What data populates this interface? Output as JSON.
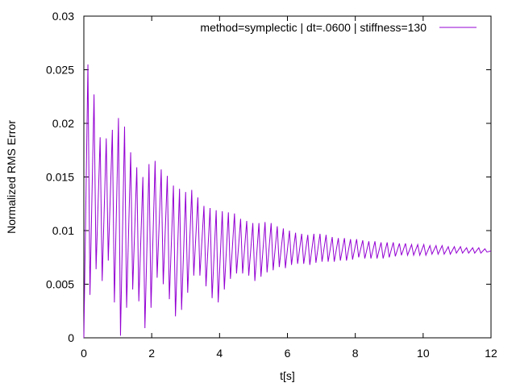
{
  "chart_data": {
    "type": "line",
    "title": "",
    "xlabel": "t[s]",
    "ylabel": "Normalized RMS Error",
    "xlim": [
      0,
      12
    ],
    "ylim": [
      0,
      0.03
    ],
    "xticks": [
      0,
      2,
      4,
      6,
      8,
      10,
      12
    ],
    "xtick_labels": [
      "0",
      "2",
      "4",
      "6",
      "8",
      "10",
      "12"
    ],
    "yticks": [
      0,
      0.005,
      0.01,
      0.015,
      0.02,
      0.025,
      0.03
    ],
    "ytick_labels": [
      "0",
      "0.005",
      "0.01",
      "0.015",
      "0.02",
      "0.025",
      "0.03"
    ],
    "grid": false,
    "legend_position": "top-right",
    "series": [
      {
        "name": "method=symplectic | dt=.0600 | stiffness=130",
        "color": "#9400d3",
        "x": [
          0.0,
          0.12,
          0.18,
          0.3,
          0.36,
          0.48,
          0.54,
          0.66,
          0.72,
          0.84,
          0.9,
          1.02,
          1.08,
          1.2,
          1.26,
          1.38,
          1.44,
          1.56,
          1.62,
          1.74,
          1.8,
          1.92,
          1.98,
          2.1,
          2.16,
          2.28,
          2.34,
          2.46,
          2.52,
          2.64,
          2.7,
          2.82,
          2.88,
          3.0,
          3.06,
          3.18,
          3.24,
          3.36,
          3.42,
          3.54,
          3.6,
          3.72,
          3.78,
          3.9,
          3.96,
          4.08,
          4.14,
          4.26,
          4.32,
          4.44,
          4.5,
          4.62,
          4.68,
          4.8,
          4.86,
          4.98,
          5.04,
          5.16,
          5.22,
          5.34,
          5.4,
          5.52,
          5.58,
          5.7,
          5.76,
          5.88,
          5.94,
          6.06,
          6.12,
          6.24,
          6.3,
          6.42,
          6.48,
          6.6,
          6.66,
          6.78,
          6.84,
          6.96,
          7.02,
          7.14,
          7.2,
          7.32,
          7.38,
          7.5,
          7.56,
          7.68,
          7.74,
          7.86,
          7.92,
          8.04,
          8.1,
          8.22,
          8.28,
          8.4,
          8.46,
          8.58,
          8.64,
          8.76,
          8.82,
          8.94,
          9.0,
          9.12,
          9.18,
          9.3,
          9.36,
          9.48,
          9.54,
          9.66,
          9.72,
          9.84,
          9.9,
          10.02,
          10.08,
          10.2,
          10.26,
          10.38,
          10.44,
          10.56,
          10.62,
          10.74,
          10.8,
          10.92,
          10.98,
          11.1,
          11.16,
          11.28,
          11.34,
          11.46,
          11.52,
          11.64,
          11.7,
          11.82,
          11.88,
          12.0
        ],
        "values": [
          0.0,
          0.0255,
          0.004,
          0.0227,
          0.0064,
          0.0187,
          0.0053,
          0.0186,
          0.0072,
          0.0194,
          0.0033,
          0.0205,
          0.0002,
          0.0197,
          0.0028,
          0.0173,
          0.0045,
          0.0159,
          0.0034,
          0.015,
          0.0009,
          0.0162,
          0.0028,
          0.0165,
          0.0056,
          0.0157,
          0.005,
          0.0151,
          0.0036,
          0.0142,
          0.002,
          0.0139,
          0.0026,
          0.0136,
          0.0042,
          0.0138,
          0.0058,
          0.0131,
          0.0058,
          0.0123,
          0.0048,
          0.0121,
          0.0037,
          0.0119,
          0.0033,
          0.0118,
          0.0045,
          0.0117,
          0.0055,
          0.0116,
          0.006,
          0.0111,
          0.006,
          0.0109,
          0.0058,
          0.0107,
          0.0053,
          0.0107,
          0.0057,
          0.0108,
          0.0061,
          0.0107,
          0.0063,
          0.0104,
          0.0066,
          0.0102,
          0.0065,
          0.01,
          0.0068,
          0.0098,
          0.0069,
          0.0097,
          0.0069,
          0.0096,
          0.0068,
          0.0097,
          0.007,
          0.0097,
          0.0071,
          0.0096,
          0.0071,
          0.0094,
          0.0071,
          0.0093,
          0.0072,
          0.0093,
          0.0072,
          0.0092,
          0.0073,
          0.0092,
          0.0075,
          0.0091,
          0.0074,
          0.009,
          0.0074,
          0.009,
          0.0074,
          0.0089,
          0.0074,
          0.0089,
          0.0075,
          0.0089,
          0.0076,
          0.0088,
          0.0077,
          0.0088,
          0.0077,
          0.0087,
          0.0077,
          0.0087,
          0.0077,
          0.0087,
          0.0077,
          0.0086,
          0.0078,
          0.0086,
          0.0078,
          0.0086,
          0.0078,
          0.0085,
          0.0078,
          0.0085,
          0.0079,
          0.0085,
          0.0079,
          0.0084,
          0.0079,
          0.0084,
          0.0079,
          0.0084,
          0.0079,
          0.0083,
          0.008,
          0.0081
        ]
      }
    ]
  }
}
